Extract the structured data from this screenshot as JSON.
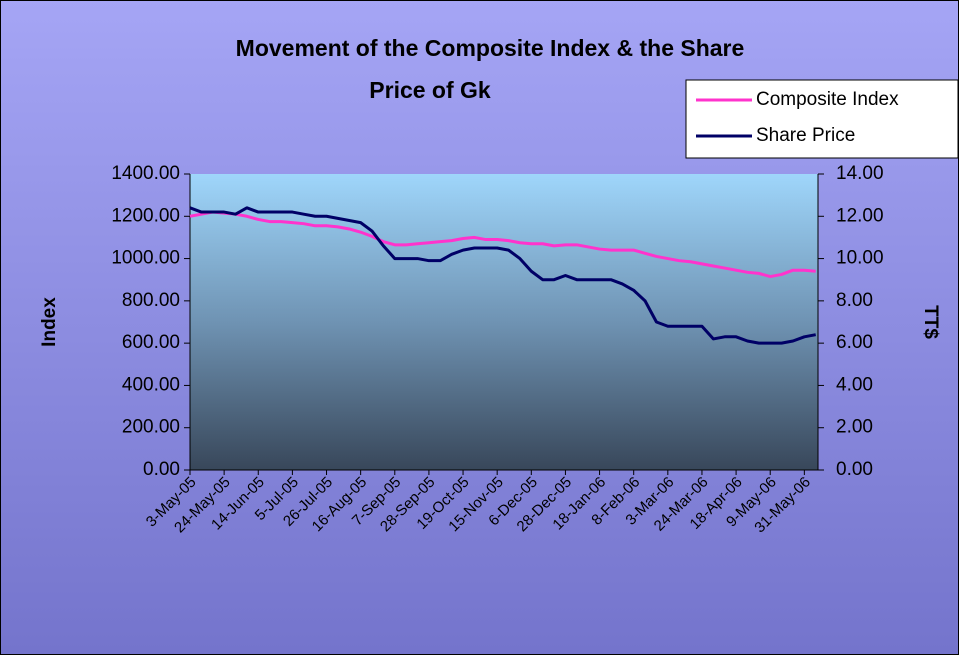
{
  "chart_data": {
    "type": "line",
    "title": "Movement of the Composite Index & the Share Price of Gk",
    "y_label": "Index",
    "y2_label": "TT$",
    "categories": [
      "3-May-05",
      null,
      null,
      "24-May-05",
      null,
      null,
      "14-Jun-05",
      null,
      null,
      "5-Jul-05",
      null,
      null,
      "26-Jul-05",
      null,
      null,
      "16-Aug-05",
      null,
      null,
      "7-Sep-05",
      null,
      null,
      "28-Sep-05",
      null,
      null,
      "19-Oct-05",
      null,
      null,
      "15-Nov-05",
      null,
      null,
      "6-Dec-05",
      null,
      null,
      "28-Dec-05",
      null,
      null,
      "18-Jan-06",
      null,
      null,
      "8-Feb-06",
      null,
      null,
      "3-Mar-06",
      null,
      null,
      "24-Mar-06",
      null,
      null,
      "18-Apr-06",
      null,
      null,
      "9-May-06",
      null,
      null,
      "31-May-06",
      null
    ],
    "series": [
      {
        "name": "Composite Index",
        "color": "#ff33cc",
        "axis": "y",
        "values": [
          1200,
          1210,
          1220,
          1215,
          1210,
          1200,
          1185,
          1175,
          1175,
          1170,
          1165,
          1155,
          1155,
          1150,
          1140,
          1125,
          1105,
          1080,
          1065,
          1065,
          1070,
          1075,
          1080,
          1085,
          1095,
          1100,
          1090,
          1090,
          1085,
          1075,
          1070,
          1070,
          1060,
          1065,
          1065,
          1055,
          1045,
          1040,
          1040,
          1040,
          1025,
          1010,
          1000,
          990,
          985,
          975,
          965,
          955,
          945,
          935,
          930,
          915,
          925,
          945,
          945,
          940
        ]
      },
      {
        "name": "Share Price",
        "color": "#000066",
        "axis": "y2",
        "values": [
          12.4,
          12.2,
          12.2,
          12.2,
          12.1,
          12.4,
          12.2,
          12.2,
          12.2,
          12.2,
          12.1,
          12.0,
          12.0,
          11.9,
          11.8,
          11.7,
          11.3,
          10.6,
          10.0,
          10.0,
          10.0,
          9.9,
          9.9,
          10.2,
          10.4,
          10.5,
          10.5,
          10.5,
          10.4,
          10.0,
          9.4,
          9.0,
          9.0,
          9.2,
          9.0,
          9.0,
          9.0,
          9.0,
          8.8,
          8.5,
          8.0,
          7.0,
          6.8,
          6.8,
          6.8,
          6.8,
          6.2,
          6.3,
          6.3,
          6.1,
          6.0,
          6.0,
          6.0,
          6.1,
          6.3,
          6.4
        ]
      }
    ],
    "ylim": [
      0,
      1400
    ],
    "yticks": [
      {
        "value": 0,
        "label": "0.00"
      },
      {
        "value": 200,
        "label": "200.00"
      },
      {
        "value": 400,
        "label": "400.00"
      },
      {
        "value": 600,
        "label": "600.00"
      },
      {
        "value": 800,
        "label": "800.00"
      },
      {
        "value": 1000,
        "label": "1000.00"
      },
      {
        "value": 1200,
        "label": "1200.00"
      },
      {
        "value": 1400,
        "label": "1400.00"
      }
    ],
    "y2lim": [
      0,
      14
    ],
    "y2ticks": [
      {
        "value": 0,
        "label": "0.00"
      },
      {
        "value": 2,
        "label": "2.00"
      },
      {
        "value": 4,
        "label": "4.00"
      },
      {
        "value": 6,
        "label": "6.00"
      },
      {
        "value": 8,
        "label": "8.00"
      },
      {
        "value": 10,
        "label": "10.00"
      },
      {
        "value": 12,
        "label": "12.00"
      },
      {
        "value": 14,
        "label": "14.00"
      }
    ],
    "legend": "top-right",
    "grid": false
  }
}
